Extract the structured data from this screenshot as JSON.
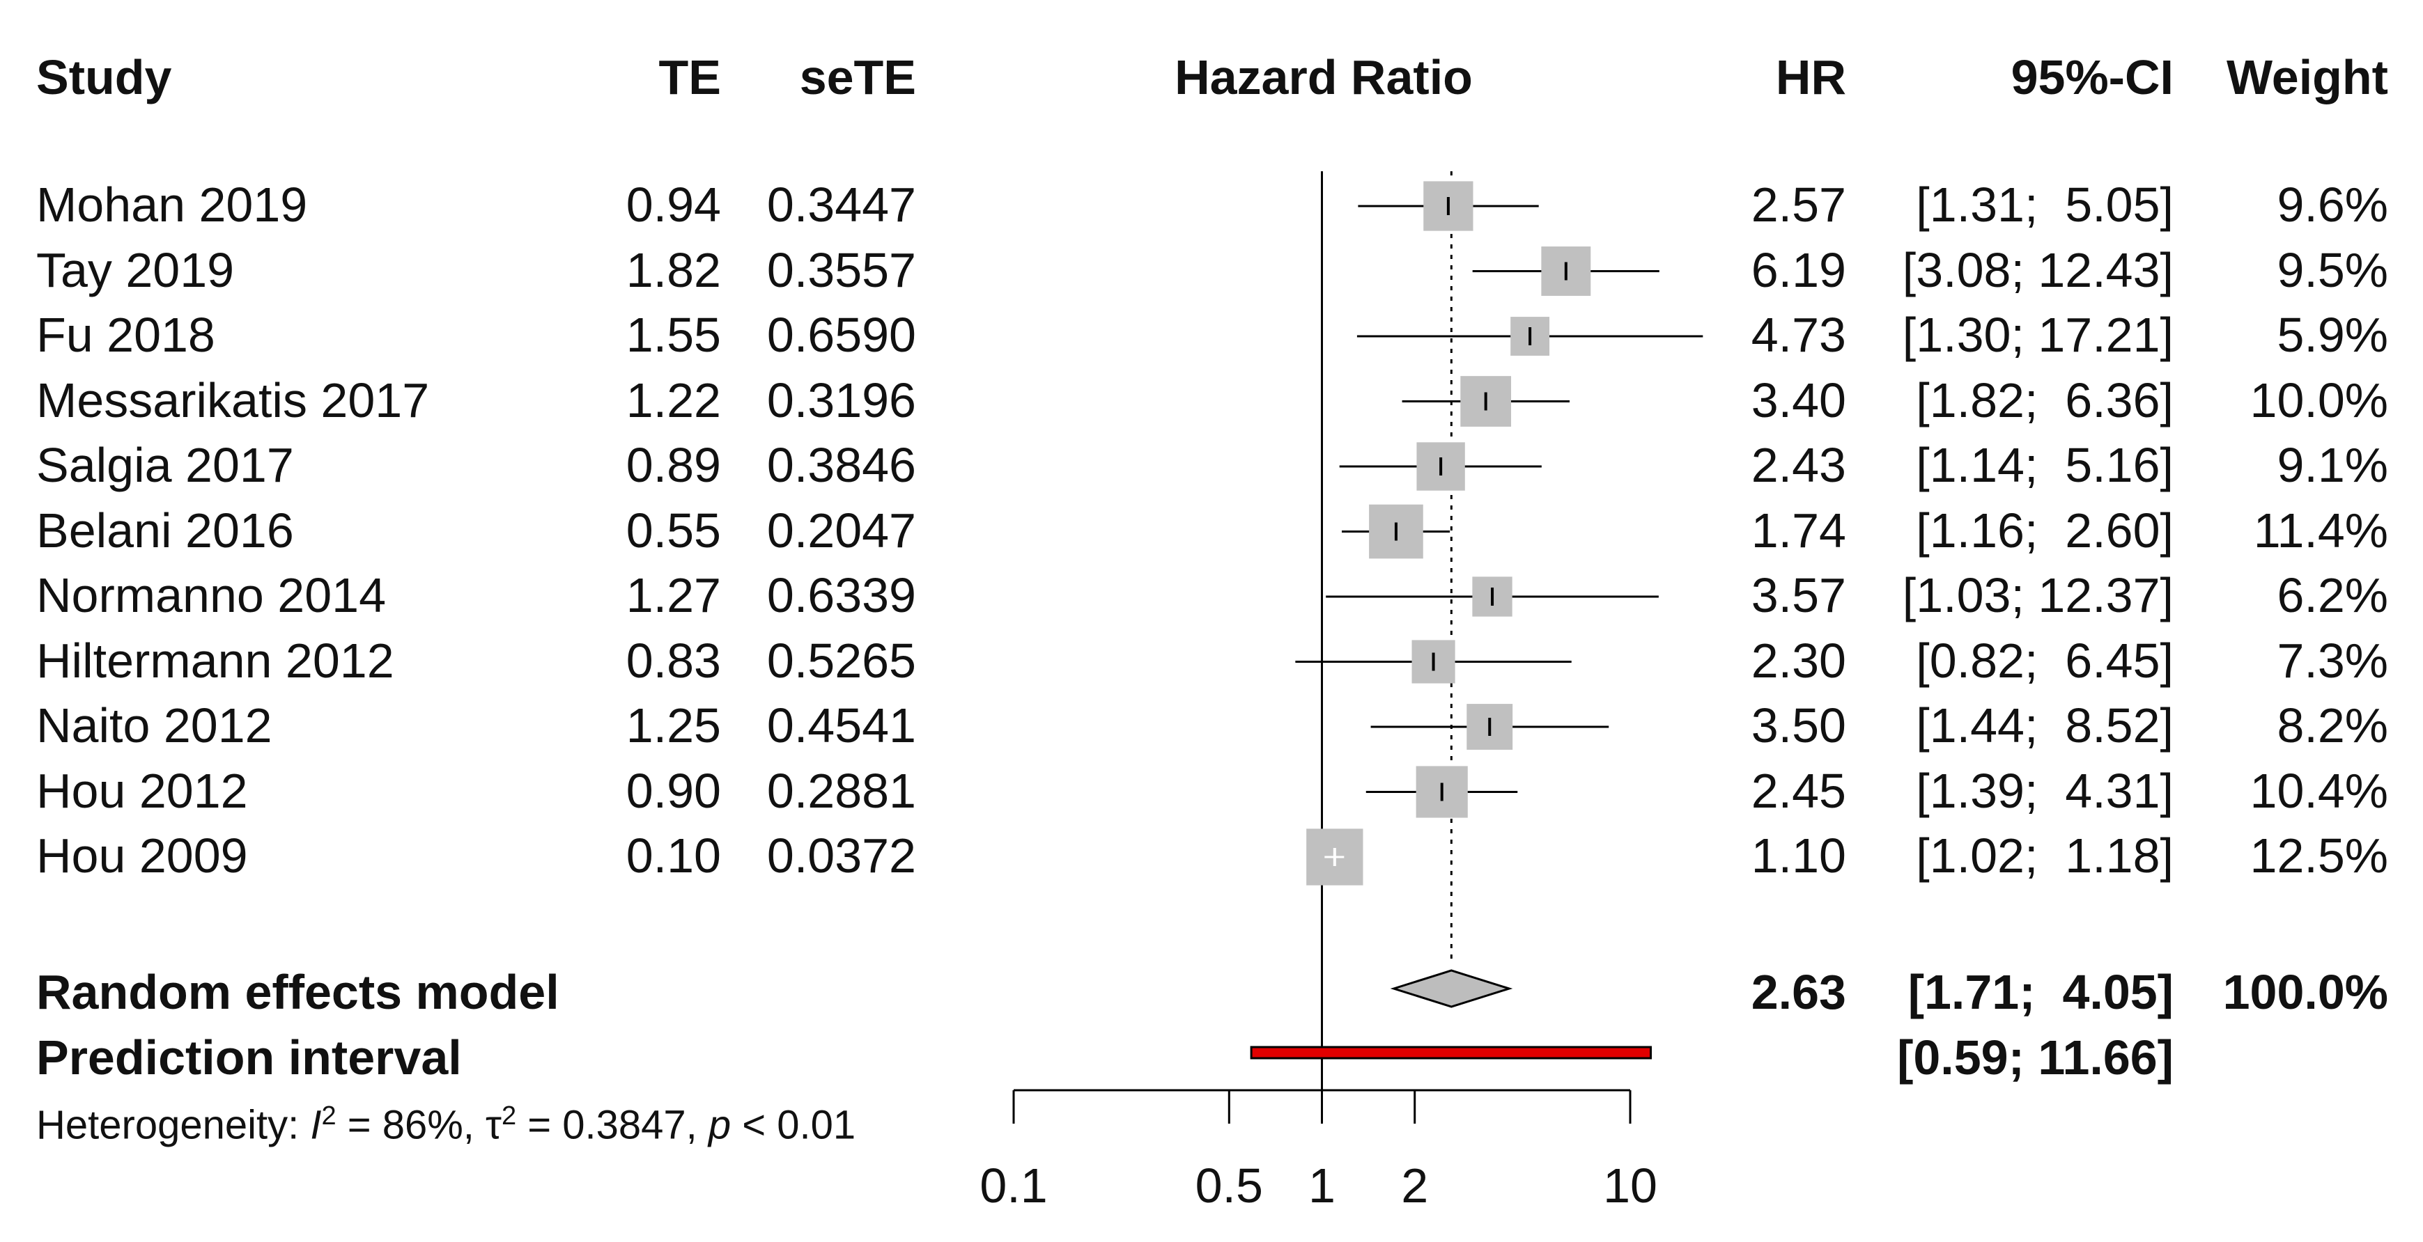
{
  "chart_data": {
    "type": "forest",
    "headers": {
      "study": "Study",
      "te": "TE",
      "sete": "seTE",
      "plot_title": "Hazard Ratio",
      "hr": "HR",
      "ci": "95%-CI",
      "weight": "Weight"
    },
    "studies": [
      {
        "study": "Mohan 2019",
        "te": "0.94",
        "sete": "0.3447",
        "hr": 2.57,
        "lower": 1.31,
        "upper": 5.05,
        "hr_text": "2.57",
        "ci_text": "[1.31;  5.05]",
        "weight": 9.6,
        "weight_text": "9.6%"
      },
      {
        "study": "Tay 2019",
        "te": "1.82",
        "sete": "0.3557",
        "hr": 6.19,
        "lower": 3.08,
        "upper": 12.43,
        "hr_text": "6.19",
        "ci_text": "[3.08; 12.43]",
        "weight": 9.5,
        "weight_text": "9.5%"
      },
      {
        "study": "Fu 2018",
        "te": "1.55",
        "sete": "0.6590",
        "hr": 4.73,
        "lower": 1.3,
        "upper": 17.21,
        "hr_text": "4.73",
        "ci_text": "[1.30; 17.21]",
        "weight": 5.9,
        "weight_text": "5.9%"
      },
      {
        "study": "Messarikatis 2017",
        "te": "1.22",
        "sete": "0.3196",
        "hr": 3.4,
        "lower": 1.82,
        "upper": 6.36,
        "hr_text": "3.40",
        "ci_text": "[1.82;  6.36]",
        "weight": 10.0,
        "weight_text": "10.0%"
      },
      {
        "study": "Salgia 2017",
        "te": "0.89",
        "sete": "0.3846",
        "hr": 2.43,
        "lower": 1.14,
        "upper": 5.16,
        "hr_text": "2.43",
        "ci_text": "[1.14;  5.16]",
        "weight": 9.1,
        "weight_text": "9.1%"
      },
      {
        "study": "Belani 2016",
        "te": "0.55",
        "sete": "0.2047",
        "hr": 1.74,
        "lower": 1.16,
        "upper": 2.6,
        "hr_text": "1.74",
        "ci_text": "[1.16;  2.60]",
        "weight": 11.4,
        "weight_text": "11.4%"
      },
      {
        "study": "Normanno 2014",
        "te": "1.27",
        "sete": "0.6339",
        "hr": 3.57,
        "lower": 1.03,
        "upper": 12.37,
        "hr_text": "3.57",
        "ci_text": "[1.03; 12.37]",
        "weight": 6.2,
        "weight_text": "6.2%"
      },
      {
        "study": "Hiltermann 2012",
        "te": "0.83",
        "sete": "0.5265",
        "hr": 2.3,
        "lower": 0.82,
        "upper": 6.45,
        "hr_text": "2.30",
        "ci_text": "[0.82;  6.45]",
        "weight": 7.3,
        "weight_text": "7.3%"
      },
      {
        "study": "Naito 2012",
        "te": "1.25",
        "sete": "0.4541",
        "hr": 3.5,
        "lower": 1.44,
        "upper": 8.52,
        "hr_text": "3.50",
        "ci_text": "[1.44;  8.52]",
        "weight": 8.2,
        "weight_text": "8.2%"
      },
      {
        "study": "Hou 2012",
        "te": "0.90",
        "sete": "0.2881",
        "hr": 2.45,
        "lower": 1.39,
        "upper": 4.31,
        "hr_text": "2.45",
        "ci_text": "[1.39;  4.31]",
        "weight": 10.4,
        "weight_text": "10.4%"
      },
      {
        "study": "Hou 2009",
        "te": "0.10",
        "sete": "0.0372",
        "hr": 1.1,
        "lower": 1.02,
        "upper": 1.18,
        "hr_text": "1.10",
        "ci_text": "[1.02;  1.18]",
        "weight": 12.5,
        "weight_text": "12.5%"
      }
    ],
    "random_effects": {
      "label": "Random effects model",
      "hr": 2.63,
      "lower": 1.71,
      "upper": 4.05,
      "hr_text": "2.63",
      "ci_text": "[1.71;  4.05]",
      "weight_text": "100.0%"
    },
    "prediction_interval": {
      "label": "Prediction interval",
      "lower": 0.59,
      "upper": 11.66,
      "ci_text": "[0.59; 11.66]"
    },
    "heterogeneity": {
      "prefix": "Heterogeneity: ",
      "i2_symbol": "I",
      "i2_value": " = 86%, ",
      "tau_symbol": "τ",
      "tau_value": " = 0.3847, ",
      "p_symbol": "p",
      "p_value": " < 0.01",
      "sup": "2"
    },
    "x_axis": {
      "scale": "log",
      "ticks": [
        0.1,
        0.5,
        1,
        2,
        10
      ],
      "tick_labels": [
        "0.1",
        "0.5",
        "1",
        "2",
        "10"
      ],
      "reference_line": 1,
      "pooled_line": 2.63
    },
    "colors": {
      "box": "#c0c0c0",
      "diamond": "#bdbdbd",
      "pred_fill": "#e00000",
      "line": "#000000"
    }
  }
}
